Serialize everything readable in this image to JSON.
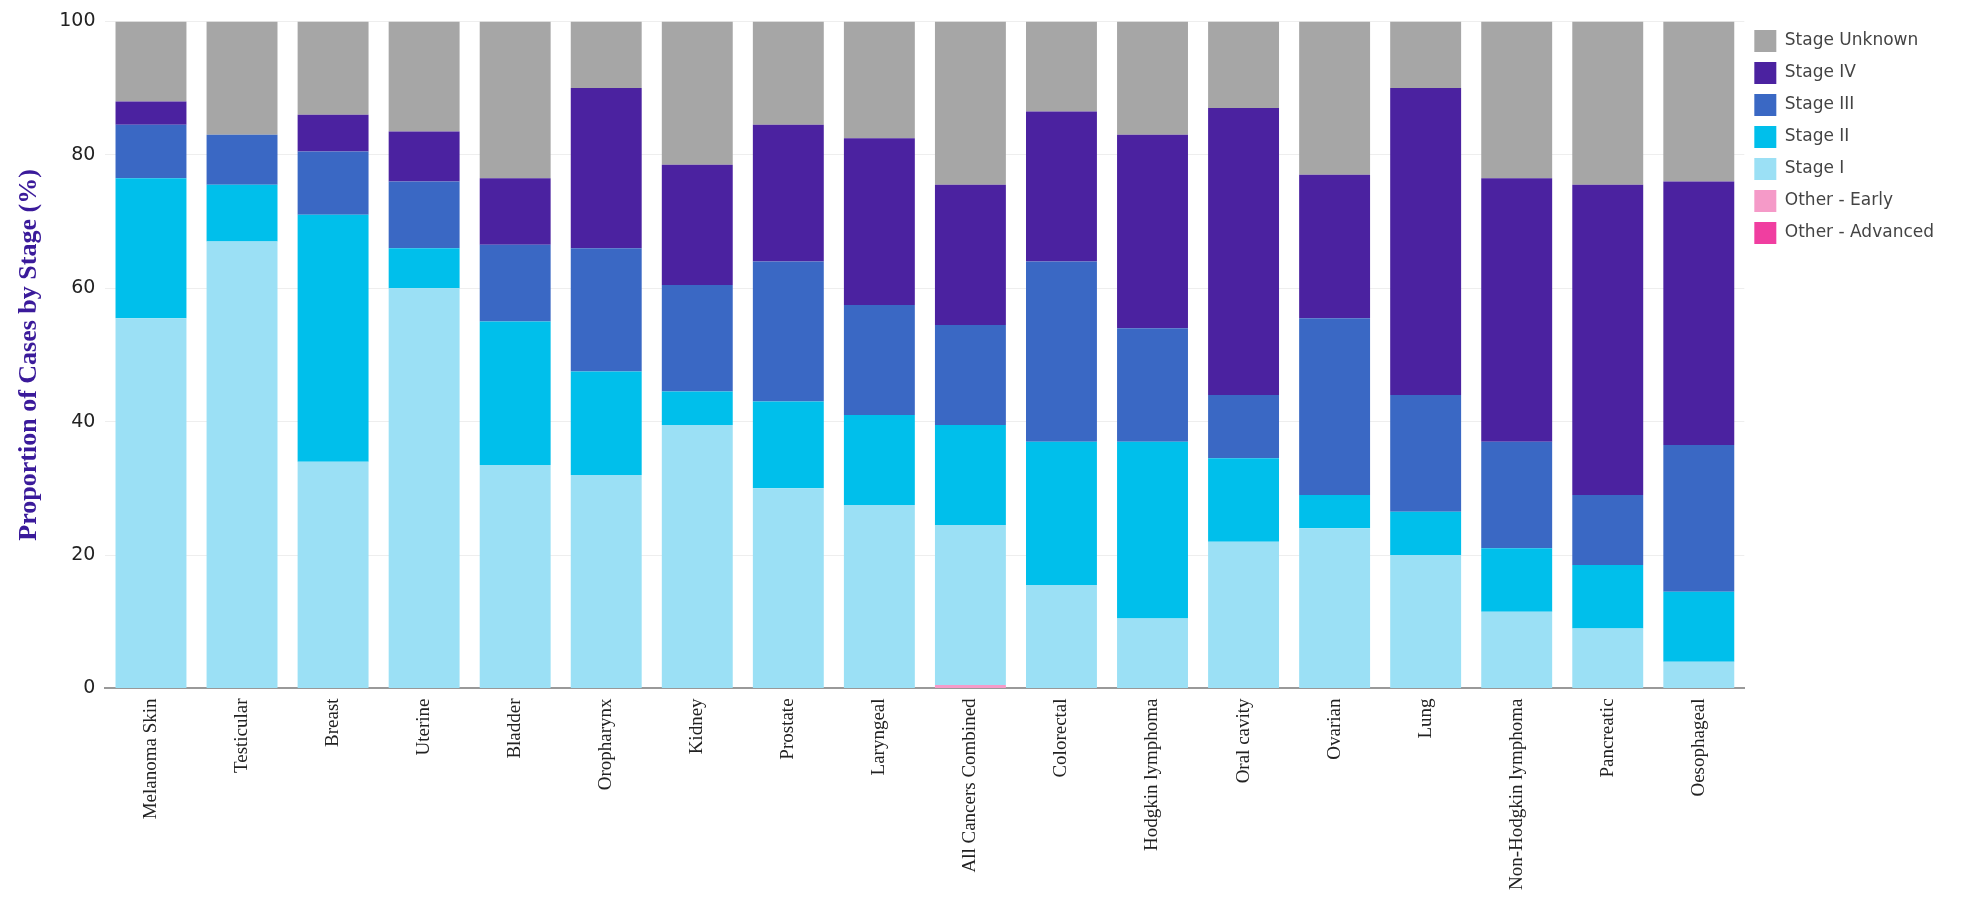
{
  "chart_data": {
    "type": "bar",
    "stacked": true,
    "ylabel": "Proportion of Cases by Stage (%)",
    "categories": [
      "Melanoma Skin",
      "Testicular",
      "Breast",
      "Uterine",
      "Bladder",
      "Oropharynx",
      "Kidney",
      "Prostate",
      "Laryngeal",
      "All Cancers Combined",
      "Colorectal",
      "Hodgkin lymphoma",
      "Oral cavity",
      "Ovarian",
      "Lung",
      "Non-Hodgkin lymphoma",
      "Pancreatic",
      "Oesophageal"
    ],
    "series": [
      {
        "name": "Other - Advanced",
        "color": "#f03ea0",
        "values": [
          0,
          0,
          0,
          0,
          0,
          0,
          0,
          0,
          0,
          0,
          0,
          0,
          0,
          0,
          0,
          0,
          0,
          0
        ]
      },
      {
        "name": "Other - Early",
        "color": "#f59ac8",
        "values": [
          0,
          0,
          0,
          0,
          0,
          0,
          0,
          0,
          0,
          0.5,
          0,
          0,
          0,
          0,
          0,
          0,
          0,
          0
        ]
      },
      {
        "name": "Stage I",
        "color": "#9be0f5",
        "values": [
          55.5,
          67,
          34,
          60,
          33.5,
          32,
          39.5,
          30,
          27.5,
          24,
          15.5,
          10.5,
          22,
          24,
          20,
          11.5,
          9,
          4
        ]
      },
      {
        "name": "Stage II",
        "color": "#00bfeb",
        "values": [
          21,
          8.5,
          37,
          6,
          21.5,
          15.5,
          5,
          13,
          13.5,
          15,
          21.5,
          26.5,
          12.5,
          5,
          6.5,
          9.5,
          9.5,
          10.5
        ]
      },
      {
        "name": "Stage III",
        "color": "#3a68c4",
        "values": [
          8,
          7.5,
          9.5,
          10,
          11.5,
          18.5,
          16,
          21,
          16.5,
          15,
          27,
          17,
          9.5,
          26.5,
          17.5,
          16,
          10.5,
          22
        ]
      },
      {
        "name": "Stage IV",
        "color": "#4b22a0",
        "values": [
          3.5,
          0,
          5.5,
          7.5,
          10,
          24,
          18,
          20.5,
          25,
          21,
          22.5,
          29,
          43,
          21.5,
          46,
          39.5,
          46.5,
          39.5
        ]
      },
      {
        "name": "Stage Unknown",
        "color": "#a6a6a6",
        "values": [
          12,
          17,
          14,
          16.5,
          23.5,
          10,
          21.5,
          15.5,
          17.5,
          24.5,
          13.5,
          17,
          13,
          23,
          10,
          23.5,
          24.5,
          24
        ]
      }
    ],
    "ylim": [
      0,
      100
    ],
    "yticks": [
      0,
      20,
      40,
      60,
      80,
      100
    ],
    "grid": "y",
    "legend": "top right"
  }
}
